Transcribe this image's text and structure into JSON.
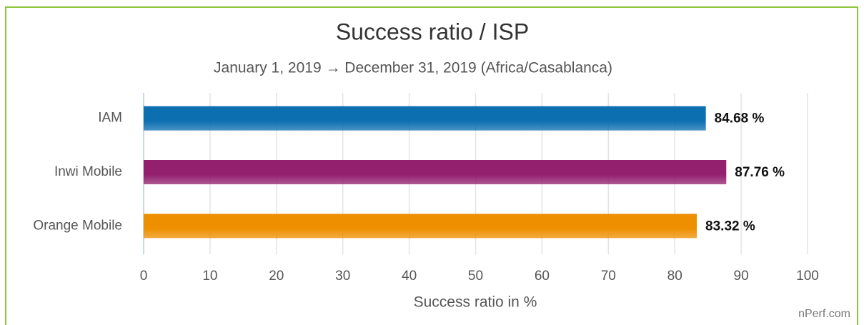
{
  "chart_data": {
    "type": "hbar",
    "title": "Success ratio / ISP",
    "subtitle": "January 1, 2019 → December 31, 2019 (Africa/Casablanca)",
    "x_label": "Success ratio in %",
    "credit": "nPerf.com",
    "categories": [
      "IAM",
      "Inwi Mobile",
      "Orange Mobile"
    ],
    "values": [
      84.68,
      87.76,
      83.32
    ],
    "value_labels": [
      "84.68 %",
      "87.76 %",
      "83.32 %"
    ],
    "colors": [
      "#0b6fb0",
      "#93206f",
      "#ee8f00"
    ],
    "xlim": [
      0,
      100
    ],
    "xticks": [
      0,
      10,
      20,
      30,
      40,
      50,
      60,
      70,
      80,
      90,
      100
    ],
    "grid": true
  }
}
